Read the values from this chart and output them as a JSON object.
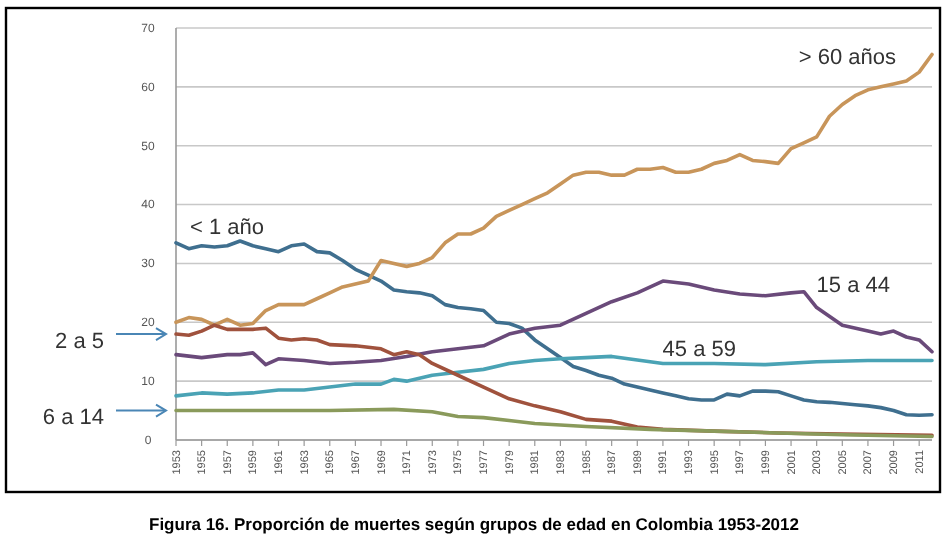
{
  "chart_data": {
    "type": "line",
    "annotations": [
      "Figura 16. Proporción de muertes según grupos de edad en Colombia 1953-2012"
    ],
    "xlim": [
      1953,
      2012
    ],
    "xticks": [
      1953,
      1955,
      1957,
      1959,
      1961,
      1963,
      1965,
      1967,
      1969,
      1971,
      1973,
      1975,
      1977,
      1979,
      1981,
      1983,
      1985,
      1987,
      1989,
      1991,
      1993,
      1995,
      1997,
      1999,
      2001,
      2003,
      2005,
      2007,
      2009,
      2011
    ],
    "ylim": [
      0,
      70
    ],
    "yticks": [
      0,
      10,
      20,
      30,
      40,
      50,
      60,
      70
    ],
    "grid": "y",
    "marker": "none",
    "line_style": "solid",
    "series": [
      {
        "name": "< 1 año",
        "color": "#3f6f8f",
        "x": [
          1953,
          1954,
          1955,
          1956,
          1957,
          1958,
          1959,
          1960,
          1961,
          1962,
          1963,
          1964,
          1965,
          1966,
          1967,
          1968,
          1969,
          1970,
          1971,
          1972,
          1973,
          1974,
          1975,
          1976,
          1977,
          1978,
          1979,
          1980,
          1981,
          1982,
          1983,
          1984,
          1985,
          1986,
          1987,
          1988,
          1989,
          1990,
          1991,
          1992,
          1993,
          1994,
          1995,
          1996,
          1997,
          1998,
          1999,
          2000,
          2001,
          2002,
          2003,
          2004,
          2005,
          2006,
          2007,
          2008,
          2009,
          2010,
          2011,
          2012
        ],
        "values": [
          33.5,
          32.5,
          33,
          32.8,
          33,
          33.8,
          33,
          32.5,
          32,
          33,
          33.3,
          32,
          31.8,
          30.5,
          29,
          28,
          27,
          25.5,
          25.2,
          25,
          24.5,
          23,
          22.5,
          22.3,
          22,
          20,
          19.8,
          19,
          17,
          15.5,
          14,
          12.5,
          11.8,
          11,
          10.5,
          9.5,
          9,
          8.5,
          8,
          7.5,
          7,
          6.8,
          6.8,
          7.8,
          7.5,
          8.3,
          8.3,
          8.2,
          7.5,
          6.8,
          6.5,
          6.4,
          6.2,
          6,
          5.8,
          5.5,
          5,
          4.3,
          4.2,
          4.3
        ]
      },
      {
        "name": "> 60 años",
        "color": "#c8955a",
        "x": [
          1953,
          1954,
          1955,
          1956,
          1957,
          1958,
          1959,
          1960,
          1961,
          1962,
          1963,
          1964,
          1965,
          1966,
          1967,
          1968,
          1969,
          1970,
          1971,
          1972,
          1973,
          1974,
          1975,
          1976,
          1977,
          1978,
          1979,
          1980,
          1981,
          1982,
          1983,
          1984,
          1985,
          1986,
          1987,
          1988,
          1989,
          1990,
          1991,
          1992,
          1993,
          1994,
          1995,
          1996,
          1997,
          1998,
          1999,
          2000,
          2001,
          2002,
          2003,
          2004,
          2005,
          2006,
          2007,
          2008,
          2009,
          2010,
          2011,
          2012
        ],
        "values": [
          20,
          20.8,
          20.5,
          19.5,
          20.5,
          19.5,
          19.8,
          22,
          23,
          23,
          23,
          24,
          25,
          26,
          26.5,
          27,
          30.5,
          30,
          29.5,
          30,
          31,
          33.5,
          35,
          35,
          36,
          38,
          39,
          40,
          41,
          42,
          43.5,
          45,
          45.5,
          45.5,
          45,
          45,
          46,
          46,
          46.3,
          45.5,
          45.5,
          46,
          47,
          47.5,
          48.5,
          47.5,
          47.3,
          47,
          49.5,
          50.5,
          51.5,
          55,
          57,
          58.5,
          59.5,
          60,
          60.5,
          61,
          62.5,
          65.5
        ]
      },
      {
        "name": "15 a 44",
        "color": "#6a4a7a",
        "x": [
          1953,
          1955,
          1957,
          1958,
          1959,
          1960,
          1961,
          1963,
          1965,
          1967,
          1969,
          1971,
          1973,
          1975,
          1977,
          1979,
          1981,
          1983,
          1985,
          1987,
          1989,
          1991,
          1993,
          1995,
          1997,
          1999,
          2001,
          2002,
          2003,
          2005,
          2007,
          2008,
          2009,
          2010,
          2011,
          2012
        ],
        "values": [
          14.5,
          14,
          14.5,
          14.5,
          14.8,
          12.8,
          13.8,
          13.5,
          13,
          13.2,
          13.5,
          14.2,
          15,
          15.5,
          16,
          18,
          19,
          19.5,
          21.5,
          23.5,
          25,
          27,
          26.5,
          25.5,
          24.8,
          24.5,
          25,
          25.2,
          22.5,
          19.5,
          18.5,
          18,
          18.5,
          17.5,
          17,
          15
        ]
      },
      {
        "name": "45 a 59",
        "color": "#4aa3b5",
        "x": [
          1953,
          1955,
          1957,
          1959,
          1961,
          1963,
          1965,
          1967,
          1969,
          1970,
          1971,
          1973,
          1975,
          1977,
          1979,
          1981,
          1983,
          1985,
          1987,
          1989,
          1991,
          1995,
          1999,
          2003,
          2007,
          2012
        ],
        "values": [
          7.5,
          8,
          7.8,
          8,
          8.5,
          8.5,
          9,
          9.5,
          9.5,
          10.3,
          10,
          11,
          11.5,
          12,
          13,
          13.5,
          13.8,
          14,
          14.2,
          13.6,
          13,
          13,
          12.8,
          13.3,
          13.5,
          13.5
        ]
      },
      {
        "name": "2 a 5",
        "color": "#a0523d",
        "x": [
          1953,
          1954,
          1955,
          1956,
          1957,
          1959,
          1960,
          1961,
          1962,
          1963,
          1964,
          1965,
          1967,
          1969,
          1970,
          1971,
          1972,
          1973,
          1975,
          1977,
          1979,
          1981,
          1983,
          1985,
          1987,
          1989,
          1991,
          1995,
          2000,
          2005,
          2012
        ],
        "values": [
          18,
          17.8,
          18.5,
          19.5,
          18.8,
          18.8,
          19,
          17.3,
          17,
          17.2,
          17,
          16.2,
          16,
          15.5,
          14.5,
          15,
          14.5,
          13,
          11,
          9,
          7,
          5.8,
          4.8,
          3.5,
          3.2,
          2.2,
          1.8,
          1.5,
          1.2,
          1,
          0.8
        ]
      },
      {
        "name": "6 a 14",
        "color": "#8a9a5b",
        "x": [
          1953,
          1960,
          1965,
          1970,
          1973,
          1975,
          1977,
          1979,
          1981,
          1985,
          1990,
          1995,
          2000,
          2005,
          2012
        ],
        "values": [
          5,
          5,
          5,
          5.2,
          4.8,
          4,
          3.8,
          3.3,
          2.8,
          2.3,
          1.8,
          1.5,
          1.2,
          0.9,
          0.6
        ]
      }
    ]
  }
}
